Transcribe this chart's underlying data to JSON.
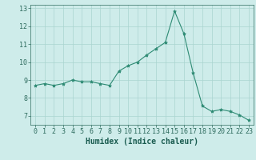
{
  "x": [
    0,
    1,
    2,
    3,
    4,
    5,
    6,
    7,
    8,
    9,
    10,
    11,
    12,
    13,
    14,
    15,
    16,
    17,
    18,
    19,
    20,
    21,
    22,
    23
  ],
  "y": [
    8.7,
    8.8,
    8.7,
    8.8,
    9.0,
    8.9,
    8.9,
    8.8,
    8.7,
    9.5,
    9.8,
    10.0,
    10.4,
    10.75,
    11.1,
    12.85,
    11.6,
    9.4,
    7.55,
    7.25,
    7.35,
    7.25,
    7.05,
    6.75
  ],
  "line_color": "#2e8b74",
  "marker": "*",
  "marker_size": 3,
  "bg_color": "#ceecea",
  "grid_color": "#aad4d0",
  "xlabel": "Humidex (Indice chaleur)",
  "xlim": [
    -0.5,
    23.5
  ],
  "ylim": [
    6.5,
    13.2
  ],
  "yticks": [
    7,
    8,
    9,
    10,
    11,
    12,
    13
  ],
  "xticks": [
    0,
    1,
    2,
    3,
    4,
    5,
    6,
    7,
    8,
    9,
    10,
    11,
    12,
    13,
    14,
    15,
    16,
    17,
    18,
    19,
    20,
    21,
    22,
    23
  ],
  "tick_color": "#2e6b5e",
  "label_color": "#1a5c50",
  "axis_font_size": 6,
  "xlabel_font_size": 7
}
